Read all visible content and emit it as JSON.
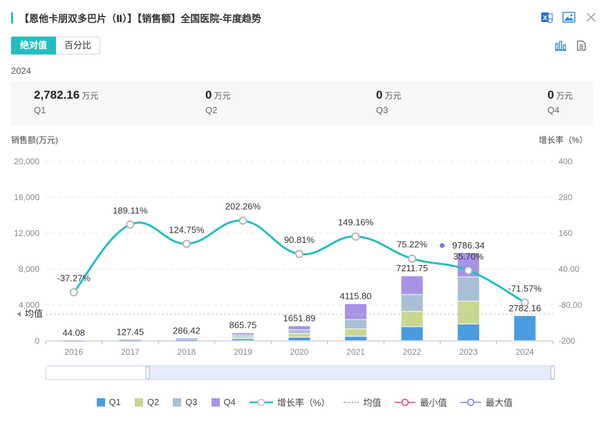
{
  "title": "【恩他卡朋双多巴片（Ⅱ）】【销售额】全国医院-年度趋势",
  "toggle": {
    "absolute": "绝对值",
    "percent": "百分比"
  },
  "year": "2024",
  "summary": [
    {
      "value": "2,782.16",
      "unit": "万元",
      "label": "Q1"
    },
    {
      "value": "0",
      "unit": "万元",
      "label": "Q2"
    },
    {
      "value": "0",
      "unit": "万元",
      "label": "Q3"
    },
    {
      "value": "0",
      "unit": "万元",
      "label": "Q4"
    }
  ],
  "colors": {
    "Q1": "#4a9ce0",
    "Q2": "#c8d88f",
    "Q3": "#a9bfd6",
    "Q4": "#a792e6",
    "rate": "#23bfc0",
    "min": "#e0407a",
    "max": "#7a7be0",
    "accent": "#23bfc0"
  },
  "chart_data": {
    "type": "bar",
    "stacked": true,
    "title": "【恩他卡朋双多巴片（Ⅱ）】【销售额】全国医院-年度趋势",
    "ylabel": "销售额(万元)",
    "y2label": "增长率（%）",
    "categories": [
      "2016",
      "2017",
      "2018",
      "2019",
      "2020",
      "2021",
      "2022",
      "2023",
      "2024"
    ],
    "series": [
      {
        "name": "Q1",
        "values": [
          10,
          30,
          70,
          200,
          380,
          480,
          1550,
          1850,
          2782.16
        ]
      },
      {
        "name": "Q2",
        "values": [
          11,
          32,
          71,
          215,
          410,
          820,
          1700,
          2550,
          0
        ]
      },
      {
        "name": "Q3",
        "values": [
          11,
          32,
          72,
          220,
          420,
          1050,
          1880,
          2700,
          0
        ]
      },
      {
        "name": "Q4",
        "values": [
          12.08,
          33.45,
          73.42,
          230.75,
          441.89,
          1765.8,
          2081.75,
          2686.34,
          0
        ]
      }
    ],
    "totals": [
      44.08,
      127.45,
      286.42,
      865.75,
      1651.89,
      4115.8,
      7211.75,
      9786.34,
      2782.16
    ],
    "total_labels": [
      "44.08",
      "127.45",
      "286.42",
      "865.75",
      "1651.89",
      "4115.80",
      "7211.75",
      "9786.34",
      "2782.16"
    ],
    "growth_rate": [
      -37.27,
      189.11,
      124.75,
      202.26,
      90.81,
      149.16,
      75.22,
      35.7,
      -71.57
    ],
    "growth_labels": [
      "-37.27%",
      "189.11%",
      "124.75%",
      "202.26%",
      "90.81%",
      "149.16%",
      "75.22%",
      "35.70%",
      "-71.57%"
    ],
    "average_label": "均值",
    "ylim": [
      0,
      20000
    ],
    "yticks": [
      "0",
      "4,000",
      "8,000",
      "12,000",
      "16,000",
      "20,000"
    ],
    "y2lim": [
      -200,
      400
    ],
    "y2ticks": [
      "-200",
      "-80.00",
      "40.00",
      "160",
      "280",
      "400"
    ],
    "legend": [
      "Q1",
      "Q2",
      "Q3",
      "Q4",
      "增长率（%）",
      "均值",
      "最小值",
      "最大值"
    ],
    "legend_position": "bottom"
  }
}
